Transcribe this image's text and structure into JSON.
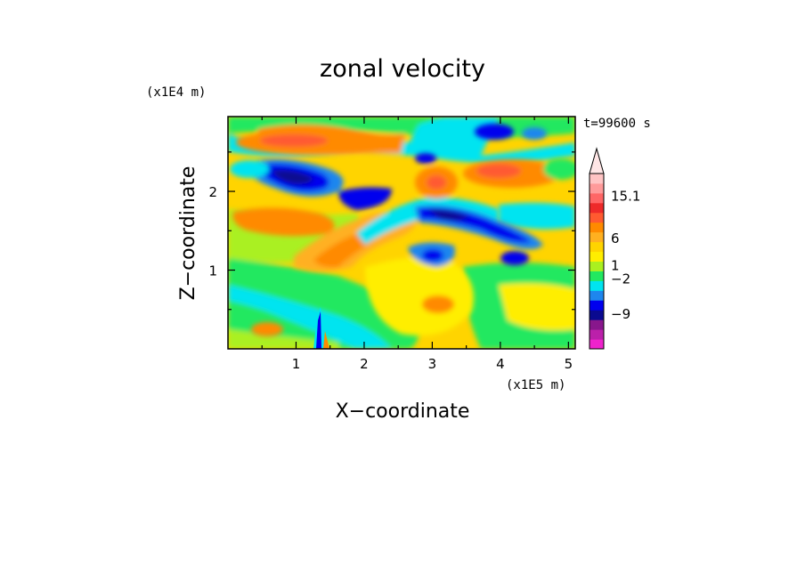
{
  "chart_data": {
    "type": "heatmap",
    "title": "zonal velocity",
    "xlabel": "X−coordinate",
    "ylabel": "Z−coordinate",
    "x_unit": "(x1E5 m)",
    "y_unit": "(x1E4 m)",
    "time_label": "t=99600 s",
    "xlim": [
      0,
      5.1
    ],
    "ylim": [
      0,
      2.95
    ],
    "x_ticks": [
      1,
      2,
      3,
      4,
      5
    ],
    "x_tick_labels": [
      "1",
      "2",
      "3",
      "4",
      "5"
    ],
    "y_ticks": [
      1,
      2
    ],
    "y_tick_labels": [
      "1",
      "2"
    ],
    "colorbar": {
      "labels": [
        {
          "text": "15.1",
          "position": 0.871
        },
        {
          "text": "6",
          "position": 0.629
        },
        {
          "text": "1",
          "position": 0.474
        },
        {
          "text": "−2",
          "position": 0.398
        },
        {
          "text": "−9",
          "position": 0.198
        }
      ],
      "extend_max": true,
      "colors_bottom_to_top": [
        "#ee22cc",
        "#bb20aa",
        "#88178c",
        "#0a0a90",
        "#0000ee",
        "#1e86ee",
        "#00e4f0",
        "#22e860",
        "#aaf020",
        "#ffee00",
        "#ffd400",
        "#ffb020",
        "#ff8a00",
        "#ff5a30",
        "#ee2a2a",
        "#ff6666",
        "#ff9a9a",
        "#ffc4c4"
      ]
    },
    "field_base_color": "#ffd400",
    "features": [
      {
        "kind": "blob",
        "x": 1.2,
        "z": 2.7,
        "value": 8
      },
      {
        "kind": "blob",
        "x": 1.6,
        "z": 2.05,
        "value": -6
      },
      {
        "kind": "blob",
        "x": 1.5,
        "z": 1.2,
        "value": 7
      },
      {
        "kind": "blob",
        "x": 2.1,
        "z": 2.05,
        "value": -4
      },
      {
        "kind": "blob",
        "x": 2.85,
        "z": 2.05,
        "value": 8
      },
      {
        "kind": "band",
        "x0": 2.8,
        "z0": 1.75,
        "x1": 4.5,
        "z1": 1.45,
        "value": -8
      },
      {
        "kind": "blob",
        "x": 3.0,
        "z": 1.2,
        "value": -7
      },
      {
        "kind": "blob",
        "x": 3.3,
        "z": 0.55,
        "value": 6
      },
      {
        "kind": "blob",
        "x": 4.2,
        "z": 2.05,
        "value": 8
      },
      {
        "kind": "blob",
        "x": 4.2,
        "z": 2.75,
        "value": -6
      }
    ]
  }
}
